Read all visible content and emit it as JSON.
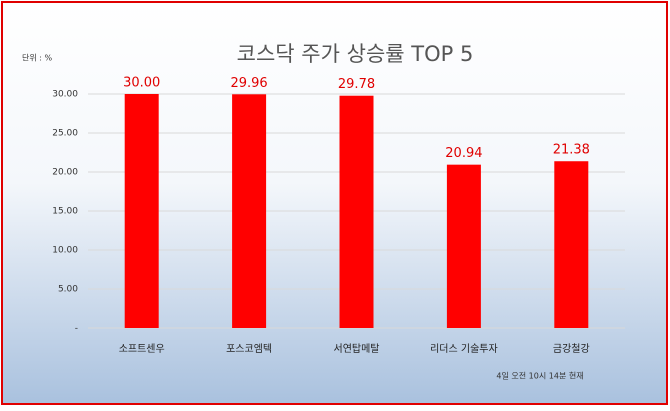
{
  "chart_data": {
    "type": "bar",
    "title": "코스닥 주가 상승률 TOP 5",
    "unit_label": "단위 : %",
    "footnote": "4일 오전 10시 14분 현재",
    "categories": [
      "소프트센우",
      "포스코엠텍",
      "서연탑메탈",
      "리더스 기술투자",
      "금강철강"
    ],
    "values": [
      30,
      29.96,
      29.78,
      20.94,
      21.38
    ],
    "value_labels": [
      "30.00",
      "29.96",
      "29.78",
      "20.94",
      "21.38"
    ],
    "color": "#ff0000",
    "ylim": [
      0,
      30
    ],
    "yticks": [
      {
        "value": 0,
        "label": "-"
      },
      {
        "value": 5,
        "label": "5.00"
      },
      {
        "value": 10,
        "label": "10.00"
      },
      {
        "value": 15,
        "label": "15.00"
      },
      {
        "value": 20,
        "label": "20.00"
      },
      {
        "value": 25,
        "label": "25.00"
      },
      {
        "value": 30,
        "label": "30.00"
      }
    ],
    "grid": true
  }
}
